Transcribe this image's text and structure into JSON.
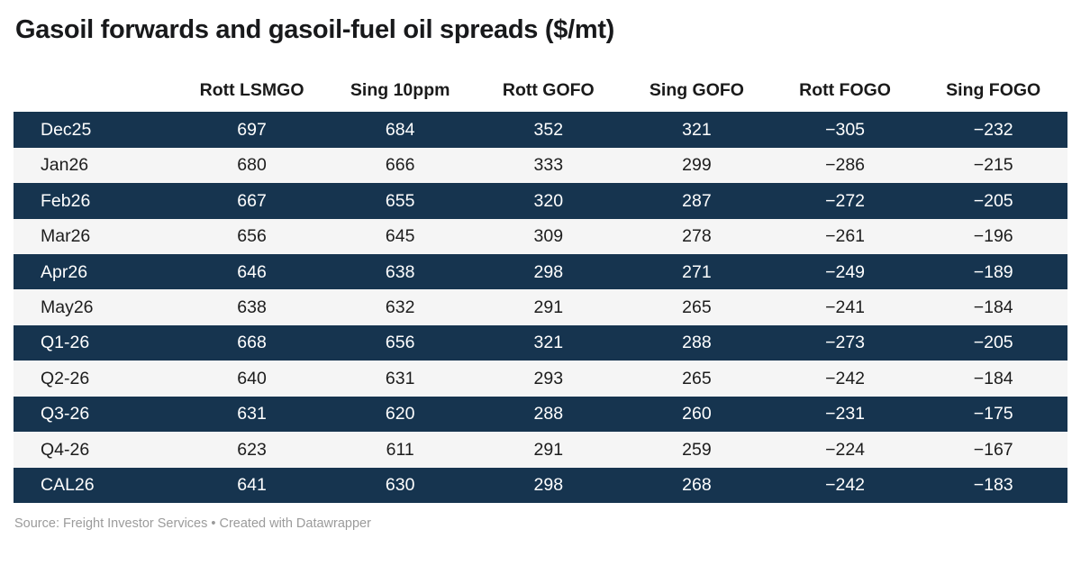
{
  "title": "Gasoil forwards and gasoil-fuel oil spreads ($/mt)",
  "footer": {
    "text": "Source: Freight Investor Services • Created with Datawrapper"
  },
  "colors": {
    "row_dark": "#16344f",
    "row_light": "#f5f5f5",
    "header_text": "#1a1a1a",
    "dark_row_text": "#ffffff",
    "light_row_text": "#1d1d1d"
  },
  "chart_data": {
    "type": "table",
    "title": "Gasoil forwards and gasoil-fuel oil spreads ($/mt)",
    "columns": [
      "",
      "Rott LSMGO",
      "Sing 10ppm",
      "Rott GOFO",
      "Sing GOFO",
      "Rott FOGO",
      "Sing FOGO"
    ],
    "rows": [
      {
        "label": "Dec25",
        "values": [
          "697",
          "684",
          "352",
          "321",
          "−305",
          "−232"
        ]
      },
      {
        "label": "Jan26",
        "values": [
          "680",
          "666",
          "333",
          "299",
          "−286",
          "−215"
        ]
      },
      {
        "label": "Feb26",
        "values": [
          "667",
          "655",
          "320",
          "287",
          "−272",
          "−205"
        ]
      },
      {
        "label": "Mar26",
        "values": [
          "656",
          "645",
          "309",
          "278",
          "−261",
          "−196"
        ]
      },
      {
        "label": "Apr26",
        "values": [
          "646",
          "638",
          "298",
          "271",
          "−249",
          "−189"
        ]
      },
      {
        "label": "May26",
        "values": [
          "638",
          "632",
          "291",
          "265",
          "−241",
          "−184"
        ]
      },
      {
        "label": "Q1-26",
        "values": [
          "668",
          "656",
          "321",
          "288",
          "−273",
          "−205"
        ]
      },
      {
        "label": "Q2-26",
        "values": [
          "640",
          "631",
          "293",
          "265",
          "−242",
          "−184"
        ]
      },
      {
        "label": "Q3-26",
        "values": [
          "631",
          "620",
          "288",
          "260",
          "−231",
          "−175"
        ]
      },
      {
        "label": "Q4-26",
        "values": [
          "623",
          "611",
          "291",
          "259",
          "−224",
          "−167"
        ]
      },
      {
        "label": "CAL26",
        "values": [
          "641",
          "630",
          "298",
          "268",
          "−242",
          "−183"
        ]
      }
    ],
    "source": "Freight Investor Services",
    "attribution": "Created with Datawrapper",
    "layout_hints": {
      "row_striping": "alternating dark navy and light gray, first row dark",
      "number_alignment": "center",
      "label_alignment": "left"
    }
  }
}
